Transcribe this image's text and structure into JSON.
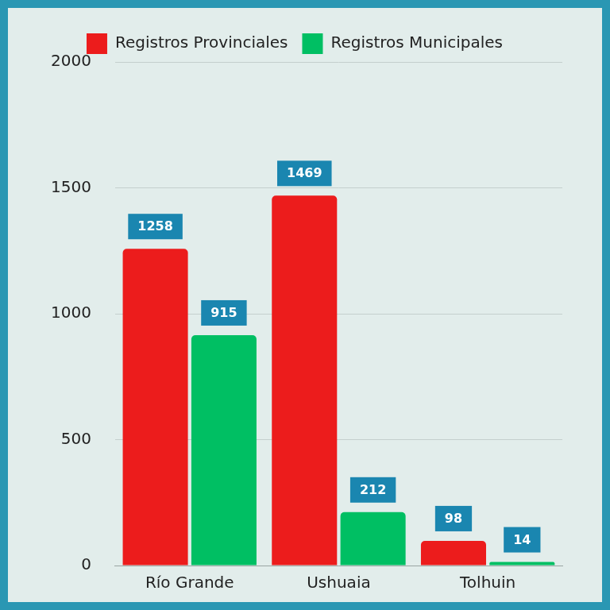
{
  "chart_data": {
    "type": "bar",
    "categories": [
      "Río Grande",
      "Ushuaia",
      "Tolhuin"
    ],
    "series": [
      {
        "name": "Registros Provinciales",
        "color": "#ec1c1c",
        "values": [
          1258,
          1469,
          98
        ]
      },
      {
        "name": "Registros Municipales",
        "color": "#00bf63",
        "values": [
          915,
          212,
          14
        ]
      }
    ],
    "ylim": [
      0,
      2000
    ],
    "yticks": [
      0,
      500,
      1000,
      1500,
      2000
    ],
    "grid": true,
    "legend": "top",
    "data_labels": true
  }
}
